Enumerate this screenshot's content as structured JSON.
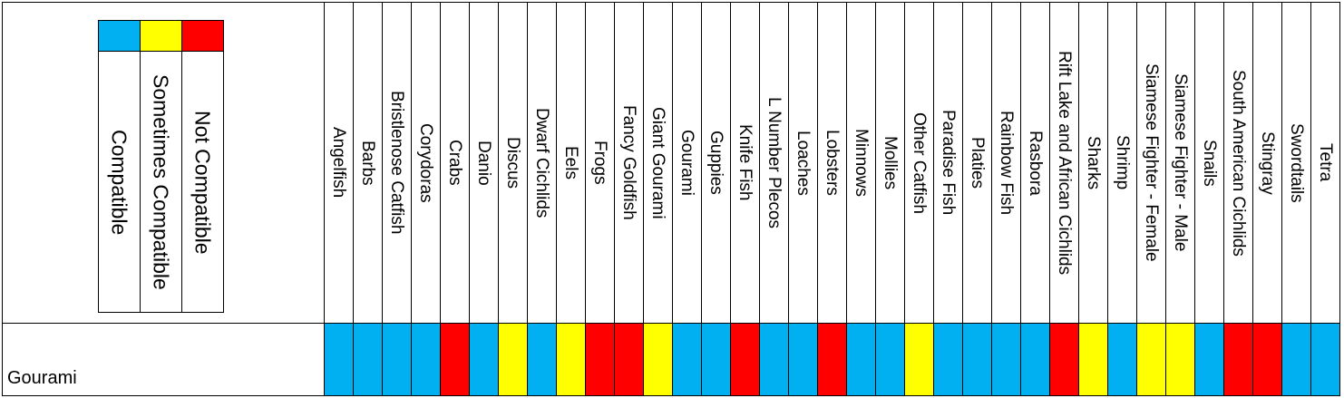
{
  "legend": [
    {
      "label": "Compatible",
      "color": "#00b0f0"
    },
    {
      "label": "Sometimes Compatible",
      "color": "#ffff00"
    },
    {
      "label": "Not Compatible",
      "color": "#ff0000"
    }
  ],
  "table": {
    "columns": [
      "Angelfish",
      "Barbs",
      "Bristlenose Catfish",
      "Corydoras",
      "Crabs",
      "Danio",
      "Discus",
      "Dwarf Cichlids",
      "Eels",
      "Frogs",
      "Fancy Goldfish",
      "Giant Gourami",
      "Gourami",
      "Guppies",
      "Knife Fish",
      "L Number Plecos",
      "Loaches",
      "Lobsters",
      "Minnows",
      "Mollies",
      "Other Catfish",
      "Paradise Fish",
      "Platies",
      "Rainbow Fish",
      "Rasbora",
      "Rift Lake and African Cichlids",
      "Sharks",
      "Shrimp",
      "Siamese Fighter - Female",
      "Siamese Fighter - Male",
      "Snails",
      "South American Cichlids",
      "Stingray",
      "Swordtails",
      "Tetra"
    ],
    "rows": [
      {
        "name": "Gourami",
        "cells": [
          "#00b0f0",
          "#00b0f0",
          "#00b0f0",
          "#00b0f0",
          "#ff0000",
          "#00b0f0",
          "#ffff00",
          "#00b0f0",
          "#ffff00",
          "#ff0000",
          "#ff0000",
          "#ffff00",
          "#00b0f0",
          "#00b0f0",
          "#ff0000",
          "#00b0f0",
          "#00b0f0",
          "#ff0000",
          "#00b0f0",
          "#00b0f0",
          "#ffff00",
          "#00b0f0",
          "#00b0f0",
          "#00b0f0",
          "#00b0f0",
          "#ff0000",
          "#ffff00",
          "#00b0f0",
          "#ffff00",
          "#ffff00",
          "#00b0f0",
          "#ff0000",
          "#ff0000",
          "#00b0f0",
          "#00b0f0"
        ]
      }
    ]
  }
}
